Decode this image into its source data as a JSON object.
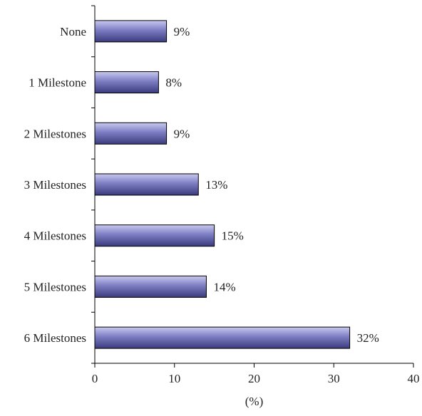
{
  "chart_data": {
    "type": "bar",
    "orientation": "horizontal",
    "categories": [
      "None",
      "1 Milestone",
      "2 Milestones",
      "3 Milestones",
      "4 Milestones",
      "5 Milestones",
      "6 Milestones"
    ],
    "values": [
      9,
      8,
      9,
      13,
      15,
      14,
      32
    ],
    "data_labels": [
      "9%",
      "8%",
      "9%",
      "13%",
      "15%",
      "14%",
      "32%"
    ],
    "title": "",
    "xlabel": "(%)",
    "ylabel": "",
    "xlim": [
      0,
      40
    ],
    "x_ticks": [
      0,
      10,
      20,
      30,
      40
    ],
    "grid": false,
    "legend": "none",
    "colors": {
      "bar_light": "#c9c9f0",
      "bar_mid": "#7d7dc3",
      "bar_dark": "#3a3a7e",
      "bar_outline": "#000000",
      "axis": "#000000"
    }
  }
}
